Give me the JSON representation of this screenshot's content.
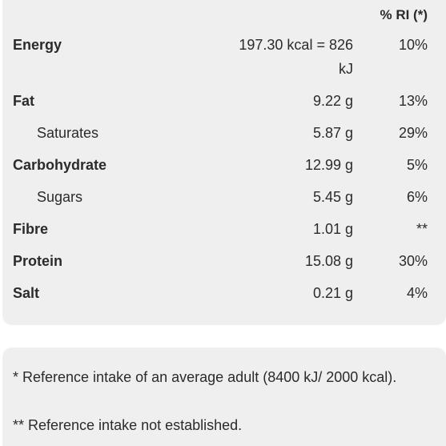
{
  "header": {
    "ri_label": "% RI (*)"
  },
  "rows": [
    {
      "label": "Energy",
      "amount": "197.30 kcal = 826 kJ",
      "ri": "10%",
      "bold": true
    },
    {
      "label": "Fat",
      "amount": "9.22 g",
      "ri": "13%",
      "bold": true
    },
    {
      "label": "Saturates",
      "amount": "5.87 g",
      "ri": "29%",
      "bold": false
    },
    {
      "label": "Carbohydrate",
      "amount": "12.99 g",
      "ri": "5%",
      "bold": true
    },
    {
      "label": "Sugars",
      "amount": "5.45 g",
      "ri": "6%",
      "bold": false
    },
    {
      "label": "Fibre",
      "amount": "1.01 g",
      "ri": "**",
      "bold": true
    },
    {
      "label": "Protein",
      "amount": "15.08 g",
      "ri": "30%",
      "bold": true
    },
    {
      "label": "Salt",
      "amount": "0.21 g",
      "ri": "4%",
      "bold": true
    }
  ],
  "notes": {
    "reference": "* Reference intake of an average adult (8400 kJ/ 2000 kcal).",
    "not_established": "** Reference intake not established."
  },
  "colors": {
    "panel_background": "#efefef",
    "text": "#2b2b2b"
  }
}
